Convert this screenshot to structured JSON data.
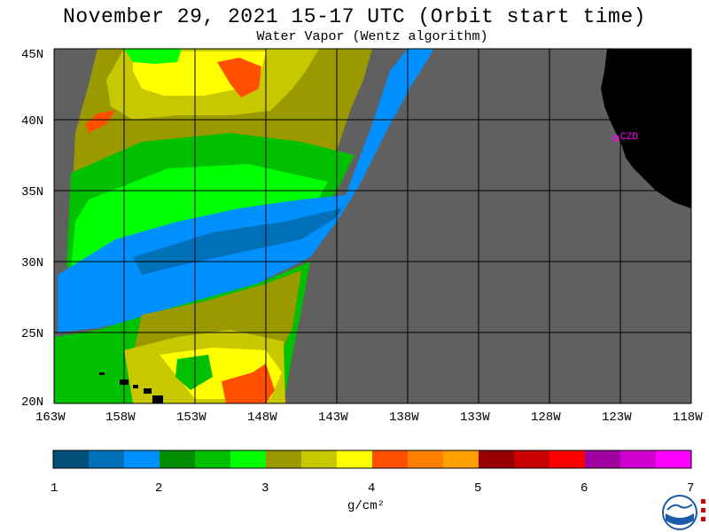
{
  "title": "November 29, 2021  15-17 UTC  (Orbit start time)",
  "subtitle": "Water Vapor (Wentz algorithm)",
  "lat_labels": [
    "45N",
    "40N",
    "35N",
    "30N",
    "25N",
    "20N"
  ],
  "lon_labels": [
    "163W",
    "158W",
    "153W",
    "148W",
    "143W",
    "138W",
    "133W",
    "128W",
    "123W",
    "118W"
  ],
  "station_label": "CZD",
  "colorbar": {
    "tick_labels": [
      "1",
      "2",
      "3",
      "4",
      "5",
      "6",
      "7"
    ],
    "units": "g/cm²",
    "colors": [
      "#00507a",
      "#0070b8",
      "#0090ff",
      "#008c00",
      "#00c000",
      "#00ff00",
      "#9a9a00",
      "#c8c800",
      "#ffff00",
      "#ff5000",
      "#ff8000",
      "#ffa000",
      "#960000",
      "#c80000",
      "#ff0000",
      "#a000a0",
      "#d000d0",
      "#ff00ff"
    ]
  },
  "colors": {
    "no_data": "#606060",
    "land": "#000000",
    "grid": "#000000",
    "station": "#ff00ff"
  }
}
